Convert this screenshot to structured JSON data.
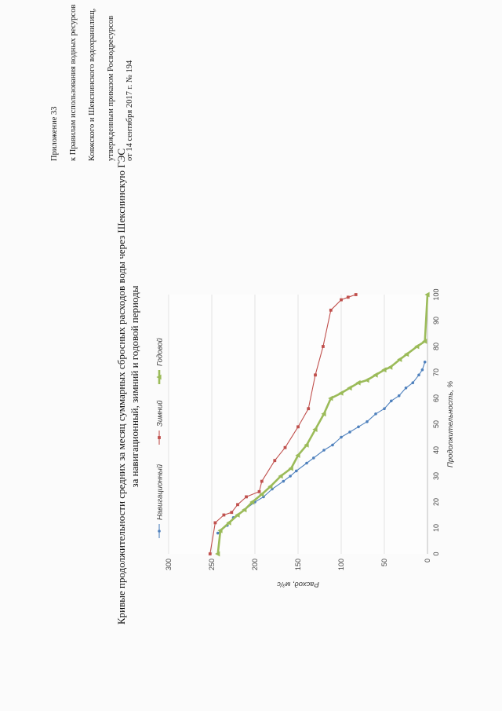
{
  "header": {
    "line1": "Приложение 33",
    "line2": "к Правилам использования водных ресурсов",
    "line3": "Ковжского и Шекснинского водохранилищ,",
    "line4": "утвержденным приказом Росводресурсов",
    "line5": "от 14 сентября 2017 г. № 194"
  },
  "chart_data": {
    "type": "line",
    "title": "Кривые продолжительности средних за месяц суммарных сбросных расходов воды через Шекснинскую ГЭС",
    "subtitle": "за навигационный, зимний и годовой периоды",
    "xlabel": "Продолжительность, %",
    "ylabel": "Расход, м³/с",
    "xlim": [
      0,
      100
    ],
    "ylim": [
      0,
      300
    ],
    "xticks": [
      "0",
      "10",
      "20",
      "30",
      "40",
      "50",
      "60",
      "70",
      "80",
      "90",
      "100"
    ],
    "yticks": [
      "0",
      "50",
      "100",
      "150",
      "200",
      "250",
      "300"
    ],
    "grid": true,
    "legend_position": "top",
    "series": [
      {
        "name": "Навигационный",
        "color": "#4f81bd",
        "x": [
          8,
          11,
          14,
          17,
          20,
          22,
          25,
          28,
          30,
          32,
          35,
          37,
          40,
          42,
          45,
          47,
          49,
          51,
          54,
          56,
          59,
          61,
          64,
          66,
          69,
          71,
          74
        ],
        "y": [
          243,
          232,
          225,
          212,
          200,
          190,
          180,
          167,
          159,
          152,
          140,
          132,
          120,
          110,
          100,
          90,
          80,
          70,
          60,
          50,
          42,
          33,
          25,
          17,
          10,
          6,
          3
        ]
      },
      {
        "name": "Зимний",
        "color": "#c0504d",
        "x": [
          0,
          12,
          15,
          16,
          19,
          22,
          24,
          28,
          36,
          41,
          49,
          56,
          69,
          80,
          94,
          98,
          99,
          100
        ],
        "y": [
          252,
          246,
          236,
          227,
          220,
          210,
          195,
          192,
          177,
          165,
          150,
          138,
          130,
          121,
          112,
          100,
          92,
          83
        ]
      },
      {
        "name": "Годовой",
        "color": "#9bbb59",
        "x": [
          0,
          9,
          12,
          15,
          17,
          20,
          23,
          26,
          30,
          33,
          38,
          42,
          48,
          54,
          60,
          62,
          64,
          66,
          67,
          69,
          71,
          72,
          75,
          77,
          80,
          82,
          100
        ],
        "y": [
          243,
          240,
          230,
          220,
          212,
          203,
          192,
          182,
          170,
          158,
          150,
          140,
          130,
          120,
          112,
          100,
          90,
          80,
          70,
          60,
          50,
          43,
          32,
          24,
          12,
          3,
          0
        ]
      }
    ]
  }
}
